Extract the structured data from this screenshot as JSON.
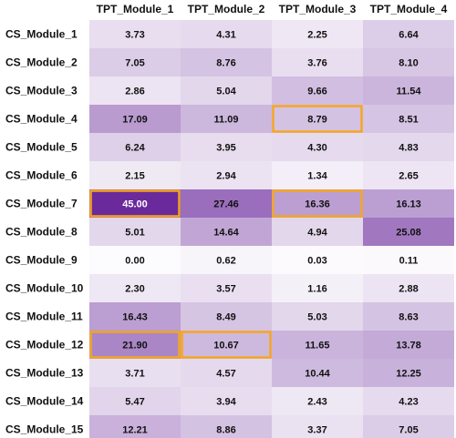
{
  "chart_data": {
    "type": "heatmap",
    "columns": [
      "TPT_Module_1",
      "TPT_Module_2",
      "TPT_Module_3",
      "TPT_Module_4"
    ],
    "rows": [
      "CS_Module_1",
      "CS_Module_2",
      "CS_Module_3",
      "CS_Module_4",
      "CS_Module_5",
      "CS_Module_6",
      "CS_Module_7",
      "CS_Module_8",
      "CS_Module_9",
      "CS_Module_10",
      "CS_Module_11",
      "CS_Module_12",
      "CS_Module_13",
      "CS_Module_14",
      "CS_Module_15"
    ],
    "values": [
      [
        3.73,
        4.31,
        2.25,
        6.64
      ],
      [
        7.05,
        8.76,
        3.76,
        8.1
      ],
      [
        2.86,
        5.04,
        9.66,
        11.54
      ],
      [
        17.09,
        11.09,
        8.79,
        8.51
      ],
      [
        6.24,
        3.95,
        4.3,
        4.83
      ],
      [
        2.15,
        2.94,
        1.34,
        2.65
      ],
      [
        45.0,
        27.46,
        16.36,
        16.13
      ],
      [
        5.01,
        14.64,
        4.94,
        25.08
      ],
      [
        0.0,
        0.62,
        0.03,
        0.11
      ],
      [
        2.3,
        3.57,
        1.16,
        2.88
      ],
      [
        16.43,
        8.49,
        5.03,
        8.63
      ],
      [
        21.9,
        10.67,
        11.65,
        13.78
      ],
      [
        3.71,
        4.57,
        10.44,
        12.25
      ],
      [
        5.47,
        3.94,
        2.43,
        4.23
      ],
      [
        12.21,
        8.86,
        3.37,
        7.05
      ]
    ],
    "labels": [
      [
        "3.73",
        "4.31",
        "2.25",
        "6.64"
      ],
      [
        "7.05",
        "8.76",
        "3.76",
        "8.10"
      ],
      [
        "2.86",
        "5.04",
        "9.66",
        "11.54"
      ],
      [
        "17.09",
        "11.09",
        "8.79",
        "8.51"
      ],
      [
        "6.24",
        "3.95",
        "4.30",
        "4.83"
      ],
      [
        "2.15",
        "2.94",
        "1.34",
        "2.65"
      ],
      [
        "45.00",
        "27.46",
        "16.36",
        "16.13"
      ],
      [
        "5.01",
        "14.64",
        "4.94",
        "25.08"
      ],
      [
        "0.00",
        "0.62",
        "0.03",
        "0.11"
      ],
      [
        "2.30",
        "3.57",
        "1.16",
        "2.88"
      ],
      [
        "16.43",
        "8.49",
        "5.03",
        "8.63"
      ],
      [
        "21.90",
        "10.67",
        "11.65",
        "13.78"
      ],
      [
        "3.71",
        "4.57",
        "10.44",
        "12.25"
      ],
      [
        "5.47",
        "3.94",
        "2.43",
        "4.23"
      ],
      [
        "12.21",
        "8.86",
        "3.37",
        "7.05"
      ]
    ],
    "value_range": [
      0,
      45
    ],
    "colormap": {
      "low": "#fcfbfd",
      "high": "#6a2a9c"
    },
    "highlighted_cells": [
      {
        "row": "CS_Module_4",
        "column": "TPT_Module_3"
      },
      {
        "row": "CS_Module_7",
        "column": "TPT_Module_1"
      },
      {
        "row": "CS_Module_7",
        "column": "TPT_Module_3"
      },
      {
        "row": "CS_Module_12",
        "column": "TPT_Module_1"
      },
      {
        "row": "CS_Module_12",
        "column": "TPT_Module_2"
      }
    ],
    "highlight_color": "#f5a623",
    "legend": "none",
    "grid": false
  }
}
